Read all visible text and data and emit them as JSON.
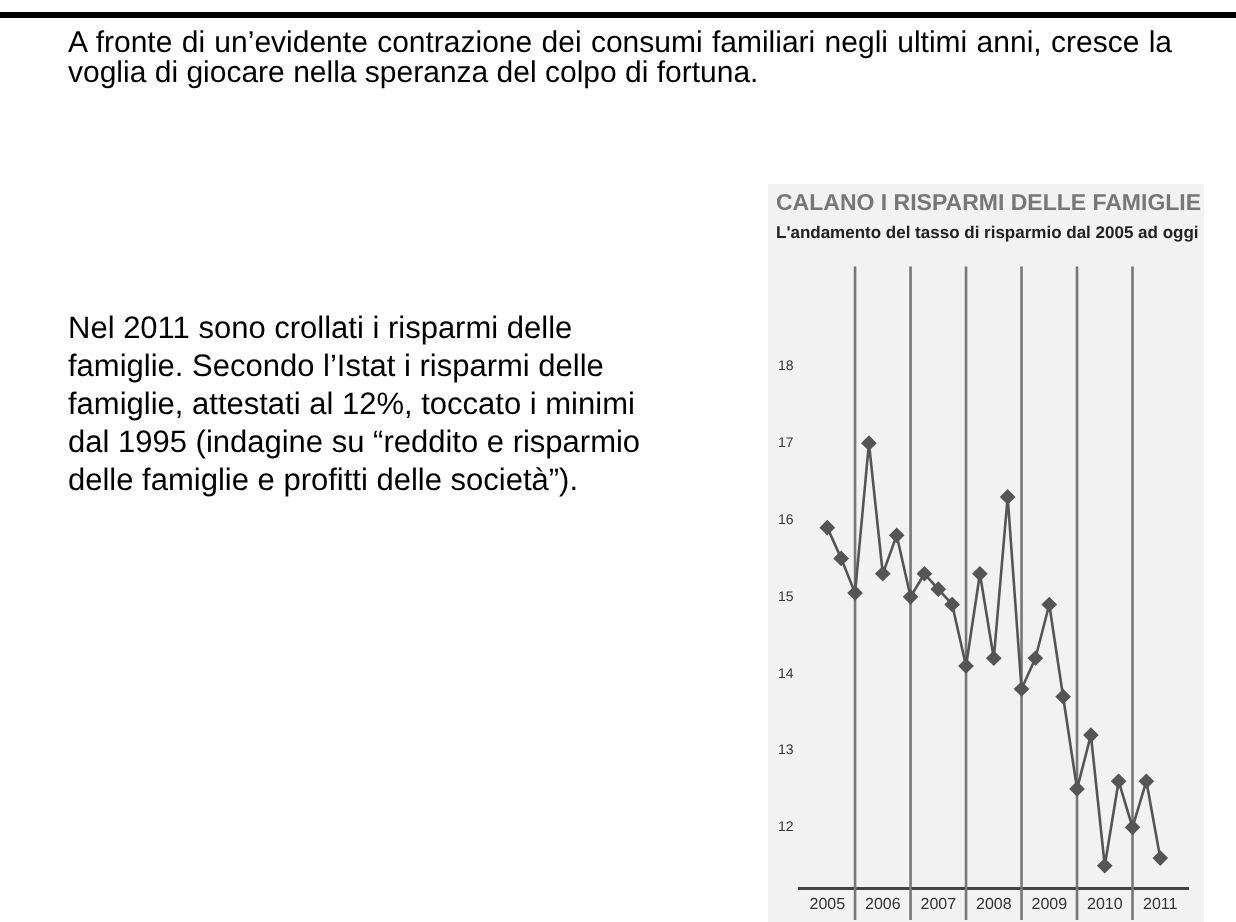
{
  "chart_data": {
    "type": "line",
    "title": "CALANO I RISPARMI DELLE FAMIGLIE",
    "subtitle": "L'andamento del tasso di risparmio dal 2005 ad oggi",
    "annotations": [
      "A fronte di un’evidente contrazione dei consumi familiari negli ultimi anni, cresce la voglia di giocare nella speranza del colpo di fortuna.",
      "Nel 2011 sono crollati i risparmi delle famiglie. Secondo l’Istat i risparmi delle famiglie, attestati al 12%, toccato i minimi dal 1995 (indagine su “reddito e risparmio delle famiglie e profitti delle società”)."
    ],
    "x": [
      2005.5,
      2005.75,
      2006,
      2006.25,
      2006.5,
      2006.75,
      2007,
      2007.25,
      2007.5,
      2007.75,
      2008,
      2008.25,
      2008.5,
      2008.75,
      2009,
      2009.25,
      2009.5,
      2009.75,
      2010,
      2010.25,
      2010.5,
      2010.75,
      2011,
      2011.25,
      2011.5
    ],
    "series": [
      {
        "color": "#555555",
        "values": [
          15.9,
          15.5,
          15.05,
          17.0,
          15.3,
          15.8,
          15.0,
          15.3,
          15.1,
          14.9,
          14.1,
          15.3,
          14.2,
          16.3,
          13.8,
          14.2,
          14.9,
          13.7,
          12.5,
          13.2,
          11.5,
          12.6,
          12.0,
          12.6,
          11.6
        ]
      }
    ],
    "xlim": [
      2005,
      2012
    ],
    "xticks": [
      {
        "value": 2005.5,
        "label": "2005"
      },
      {
        "value": 2006.5,
        "label": "2006"
      },
      {
        "value": 2007.5,
        "label": "2007"
      },
      {
        "value": 2008.5,
        "label": "2008"
      },
      {
        "value": 2009.5,
        "label": "2009"
      },
      {
        "value": 2010.5,
        "label": "2010"
      },
      {
        "value": 2011.5,
        "label": "2011"
      }
    ],
    "ylim": [
      11.2,
      19.3
    ],
    "yticks": [
      12,
      13,
      14,
      15,
      16,
      17,
      18
    ],
    "ref_lines": [
      {
        "axis": "x",
        "value": 2006,
        "color": "#777777"
      },
      {
        "axis": "x",
        "value": 2007,
        "color": "#777777"
      },
      {
        "axis": "x",
        "value": 2008,
        "color": "#777777"
      },
      {
        "axis": "x",
        "value": 2009,
        "color": "#777777"
      },
      {
        "axis": "x",
        "value": 2010,
        "color": "#777777"
      },
      {
        "axis": "x",
        "value": 2011,
        "color": "#777777"
      }
    ],
    "grid": false,
    "legend": false,
    "marker": "diamond",
    "line_style": "solid"
  }
}
